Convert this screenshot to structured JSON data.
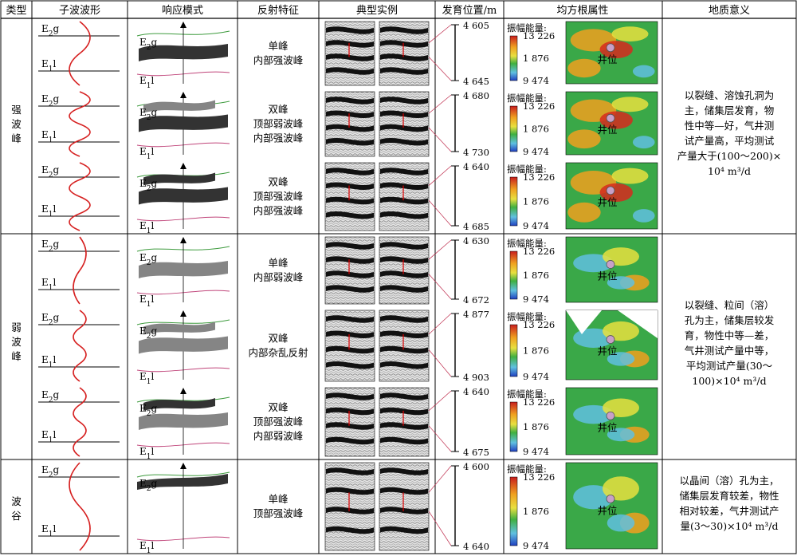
{
  "headers": [
    "类型",
    "子波波形",
    "响应模式",
    "反射特征",
    "典型实例",
    "发育位置/m",
    "均方根属性",
    "地质意义"
  ],
  "layer_top": "E2g",
  "layer_bottom": "E1l",
  "amp_label": "振幅能量:",
  "amp_ticks": [
    "13 226",
    "1 876",
    "9 474"
  ],
  "well_label": "井位",
  "groups": [
    {
      "type_chars": [
        "强",
        "波",
        "峰"
      ],
      "geology": [
        "以裂缝、溶蚀孔洞为",
        "主，储集层发育，物",
        "性中等—好，气井测",
        "试产量高，平均测试",
        "产量大于(100～200)×",
        "10⁴ m³/d"
      ]
    },
    {
      "type_chars": [
        "弱",
        "波",
        "峰"
      ],
      "geology": [
        "以裂缝、粒间（溶）",
        "孔为主，储集层较发",
        "育，物性中等—差，",
        "气井测试产量中等，",
        "平均测试产量(30～",
        "100)×10⁴ m³/d"
      ]
    },
    {
      "type_chars": [
        "波",
        "谷"
      ],
      "geology": [
        "以晶间（溶）孔为主，",
        "储集层发育较差，物性",
        "相对较差，气井测试产",
        "量(3～30)×10⁴ m³/d"
      ]
    }
  ],
  "rows": [
    {
      "feature": [
        "单峰",
        "内部强波峰"
      ],
      "depth_top": "4 605",
      "depth_bottom": "4 645"
    },
    {
      "feature": [
        "双峰",
        "顶部弱波峰",
        "内部强波峰"
      ],
      "depth_top": "4 680",
      "depth_bottom": "4 730"
    },
    {
      "feature": [
        "双峰",
        "顶部强波峰",
        "内部强波峰"
      ],
      "depth_top": "4 640",
      "depth_bottom": "4 685"
    },
    {
      "feature": [
        "单峰",
        "内部弱波峰"
      ],
      "depth_top": "4 630",
      "depth_bottom": "4 672"
    },
    {
      "feature": [
        "双峰",
        "内部杂乱反射"
      ],
      "depth_top": "4 877",
      "depth_bottom": "4 903"
    },
    {
      "feature": [
        "双峰",
        "顶部强波峰",
        "内部弱波峰"
      ],
      "depth_top": "4 640",
      "depth_bottom": "4 675"
    },
    {
      "feature": [
        "单峰",
        "顶部强波峰"
      ],
      "depth_top": "4 600",
      "depth_bottom": "4 640"
    }
  ],
  "colors": {
    "wavelet": "#d62020",
    "well_marker": "#c8a0c8",
    "strong_body": "#333333",
    "weak_body": "#858585",
    "top_curve": "#3e9b3e",
    "bottom_curve": "#c0457a"
  }
}
